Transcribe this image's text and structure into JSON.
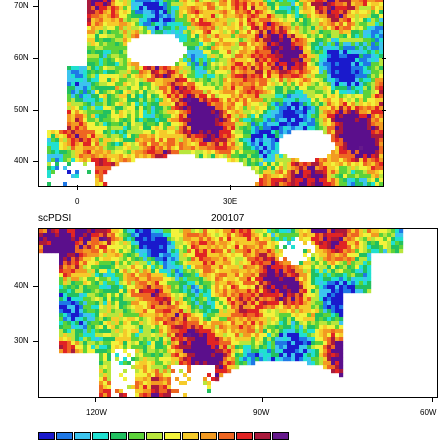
{
  "europe_panel": {
    "lat_labels": [
      "70N",
      "60N",
      "50N",
      "40N"
    ],
    "lon_labels": [
      "0",
      "30E"
    ]
  },
  "namerica_panel": {
    "variable_label": "scPDSI",
    "date_label": "200107",
    "lat_labels": [
      "40N",
      "30N"
    ],
    "lon_labels": [
      "120W",
      "90W",
      "60W"
    ]
  },
  "colorbar": {
    "colors": [
      "#1a1acc",
      "#1f78e6",
      "#3cc4ee",
      "#20e0d0",
      "#22c060",
      "#5cd23a",
      "#b8e63c",
      "#f2f23c",
      "#f5cb2a",
      "#f29a22",
      "#ee6622",
      "#e02424",
      "#aa1a3c",
      "#661a8c"
    ]
  },
  "palette": {
    "dry_purple": "#5b0f8c",
    "land_outline": "#000000",
    "missing": "#ffffff"
  }
}
